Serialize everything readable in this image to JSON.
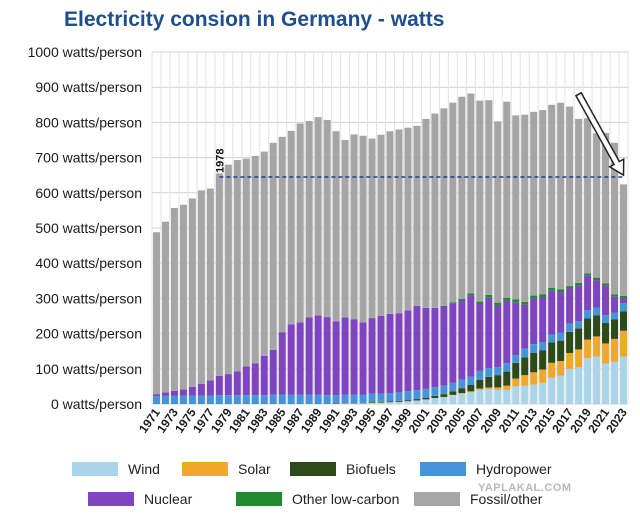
{
  "chart_data": {
    "type": "bar",
    "stacked": true,
    "title": "Electricity consion in Germany -  watts",
    "ylabel": "",
    "xlabel": "",
    "ylim": [
      0,
      1000
    ],
    "y_ticks": [
      {
        "value": 0,
        "label": "0 watts/person"
      },
      {
        "value": 100,
        "label": "100 watts/person"
      },
      {
        "value": 200,
        "label": "200 watts/person"
      },
      {
        "value": 300,
        "label": "300 watts/person"
      },
      {
        "value": 400,
        "label": "400 watts/person"
      },
      {
        "value": 500,
        "label": "500 watts/person"
      },
      {
        "value": 600,
        "label": "600 watts/person"
      },
      {
        "value": 700,
        "label": "700 watts/person"
      },
      {
        "value": 800,
        "label": "800 watts/person"
      },
      {
        "value": 900,
        "label": "900 watts/person"
      },
      {
        "value": 1000,
        "label": "1000 watts/person"
      }
    ],
    "grid": true,
    "legend_position": "bottom",
    "categories": [
      "1971",
      "1972",
      "1973",
      "1974",
      "1975",
      "1976",
      "1977",
      "1978",
      "1979",
      "1980",
      "1981",
      "1982",
      "1983",
      "1984",
      "1985",
      "1986",
      "1987",
      "1988",
      "1989",
      "1990",
      "1991",
      "1992",
      "1993",
      "1994",
      "1995",
      "1996",
      "1997",
      "1998",
      "1999",
      "2000",
      "2001",
      "2002",
      "2003",
      "2004",
      "2005",
      "2006",
      "2007",
      "2008",
      "2009",
      "2010",
      "2011",
      "2012",
      "2013",
      "2014",
      "2015",
      "2016",
      "2017",
      "2018",
      "2019",
      "2020",
      "2021",
      "2022",
      "2023"
    ],
    "x_tick_labels": [
      "1971",
      "1973",
      "1975",
      "1977",
      "1979",
      "1981",
      "1983",
      "1985",
      "1987",
      "1989",
      "1991",
      "1993",
      "1995",
      "1997",
      "1999",
      "2001",
      "2003",
      "2005",
      "2007",
      "2009",
      "2011",
      "2013",
      "2015",
      "2017",
      "2019",
      "2021",
      "2023"
    ],
    "series": [
      {
        "name": "Wind",
        "color": "#a9d4ea",
        "values": [
          0,
          0,
          0,
          0,
          0,
          0,
          0,
          0,
          0,
          0,
          0,
          0,
          0,
          0,
          0,
          0,
          0,
          0,
          0,
          0,
          0,
          1,
          1,
          2,
          3,
          4,
          5,
          6,
          8,
          10,
          13,
          17,
          20,
          25,
          29,
          33,
          40,
          42,
          40,
          40,
          50,
          52,
          55,
          60,
          75,
          80,
          100,
          105,
          130,
          135,
          115,
          120,
          135
        ]
      },
      {
        "name": "Solar",
        "color": "#f0a72c",
        "values": [
          0,
          0,
          0,
          0,
          0,
          0,
          0,
          0,
          0,
          0,
          0,
          0,
          0,
          0,
          0,
          0,
          0,
          0,
          0,
          0,
          0,
          0,
          0,
          0,
          0,
          0,
          0,
          0,
          0,
          0,
          0,
          0,
          0,
          1,
          2,
          3,
          4,
          5,
          7,
          12,
          22,
          30,
          35,
          38,
          42,
          42,
          45,
          50,
          53,
          57,
          57,
          65,
          73
        ]
      },
      {
        "name": "Biofuels",
        "color": "#2d4a1a",
        "values": [
          0,
          0,
          0,
          0,
          0,
          0,
          0,
          0,
          0,
          0,
          0,
          0,
          0,
          0,
          0,
          0,
          0,
          0,
          0,
          0,
          1,
          1,
          1,
          1,
          2,
          2,
          2,
          3,
          3,
          4,
          5,
          6,
          8,
          10,
          14,
          18,
          25,
          30,
          35,
          40,
          45,
          50,
          55,
          55,
          58,
          58,
          60,
          60,
          60,
          60,
          58,
          55,
          55
        ]
      },
      {
        "name": "Hydropower",
        "color": "#4593d8",
        "values": [
          22,
          23,
          23,
          24,
          24,
          24,
          24,
          25,
          25,
          25,
          25,
          25,
          25,
          26,
          26,
          26,
          26,
          26,
          26,
          25,
          24,
          24,
          24,
          24,
          24,
          24,
          24,
          24,
          25,
          25,
          25,
          25,
          24,
          24,
          24,
          24,
          25,
          25,
          23,
          24,
          22,
          25,
          25,
          23,
          22,
          23,
          23,
          20,
          23,
          22,
          22,
          20,
          23
        ]
      },
      {
        "name": "Nuclear",
        "color": "#7f45c0",
        "values": [
          6,
          10,
          14,
          17,
          25,
          33,
          43,
          55,
          60,
          68,
          82,
          90,
          112,
          128,
          178,
          200,
          206,
          220,
          226,
          222,
          210,
          220,
          215,
          205,
          215,
          220,
          225,
          225,
          230,
          240,
          230,
          225,
          225,
          225,
          225,
          230,
          190,
          200,
          175,
          178,
          150,
          125,
          130,
          128,
          125,
          115,
          100,
          102,
          98,
          78,
          85,
          45,
          15
        ]
      },
      {
        "name": "Other low-carbon",
        "color": "#1f8a2e",
        "values": [
          0,
          0,
          0,
          0,
          0,
          0,
          0,
          0,
          0,
          0,
          0,
          0,
          0,
          0,
          0,
          0,
          0,
          0,
          0,
          0,
          0,
          0,
          0,
          0,
          0,
          0,
          0,
          0,
          0,
          0,
          0,
          0,
          2,
          4,
          5,
          6,
          7,
          8,
          8,
          8,
          8,
          8,
          8,
          8,
          8,
          8,
          7,
          7,
          7,
          7,
          6,
          6,
          6
        ]
      },
      {
        "name": "Fossil/other",
        "color": "#a5a5a5",
        "values": [
          460,
          485,
          520,
          525,
          535,
          550,
          545,
          575,
          595,
          600,
          590,
          590,
          580,
          588,
          555,
          550,
          565,
          558,
          563,
          560,
          540,
          504,
          525,
          530,
          510,
          515,
          519,
          522,
          519,
          511,
          537,
          552,
          561,
          567,
          574,
          568,
          571,
          553,
          515,
          557,
          523,
          532,
          522,
          523,
          520,
          530,
          510,
          466,
          441,
          410,
          427,
          431,
          317
        ]
      }
    ],
    "annotations": [
      {
        "text": "1978",
        "x": "1978",
        "y": 645
      }
    ],
    "reference_line": {
      "y": 645,
      "style": "dashed",
      "color": "#1f3f8c",
      "from": "1978",
      "to": "2023"
    },
    "arrow": {
      "from": {
        "x": "2018",
        "y": 880
      },
      "to": {
        "x": "2023",
        "y": 650
      }
    }
  },
  "watermark": "YAPLAKAL.COM",
  "colors": {
    "title": "#1f4e8c",
    "grid": "#d0d0d0",
    "axis_text": "#1a1a1a"
  }
}
